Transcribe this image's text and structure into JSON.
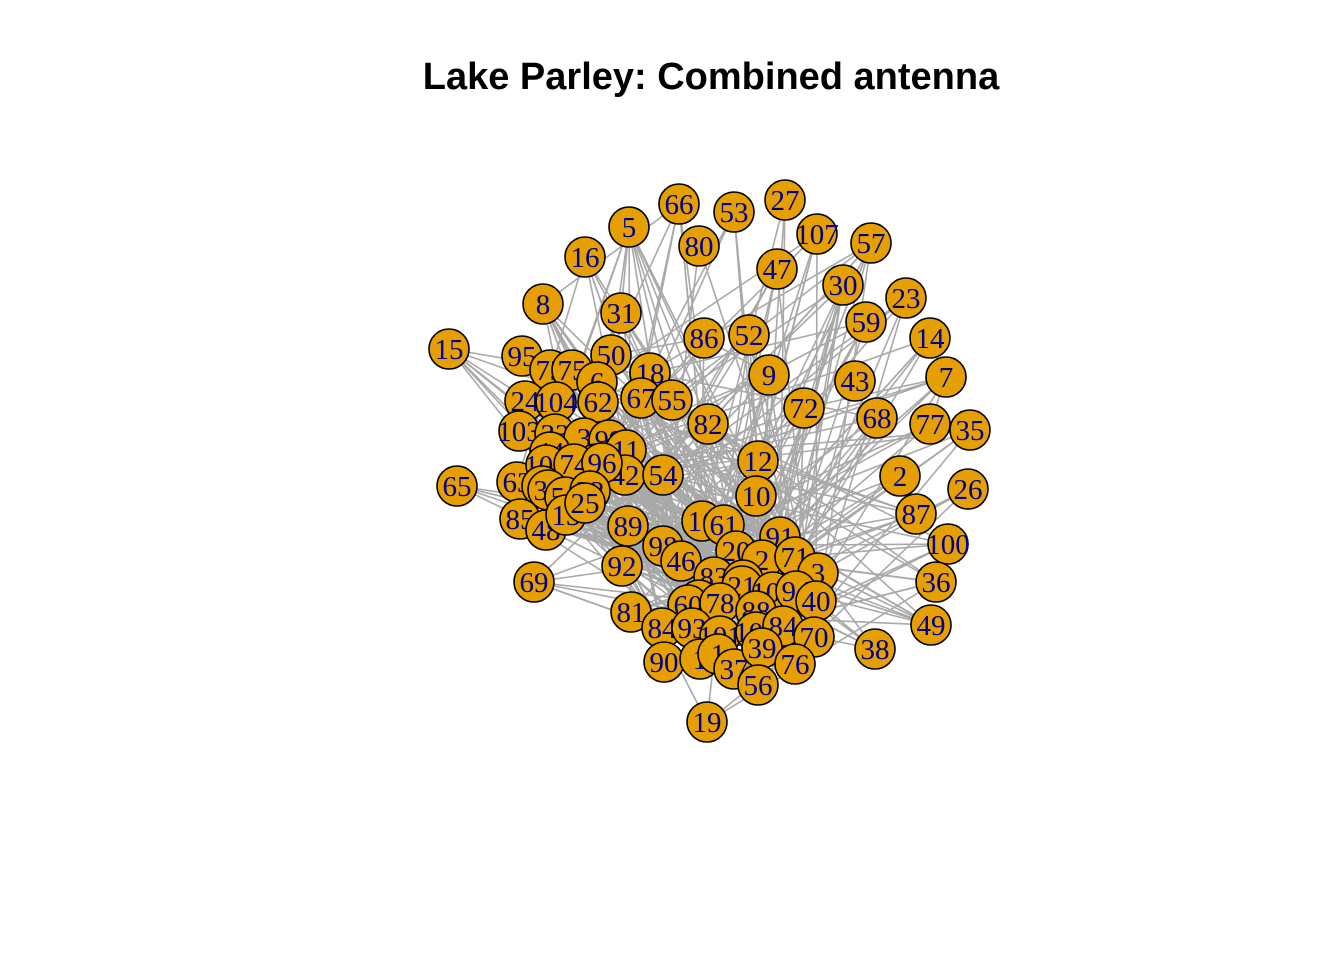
{
  "title": "Lake Parley: Combined antenna",
  "style": {
    "node_fill": "#E69F00",
    "node_stroke": "#000000",
    "label_color": "#00008B",
    "edge_color": "#A9A9A9"
  },
  "node_labels": [
    "15",
    "8",
    "16",
    "5",
    "66",
    "53",
    "27",
    "107",
    "57",
    "80",
    "47",
    "30",
    "23",
    "31",
    "95",
    "73",
    "75",
    "50",
    "18",
    "86",
    "52",
    "59",
    "14",
    "9",
    "43",
    "7",
    "24",
    "104",
    "6",
    "62",
    "67",
    "55",
    "72",
    "103",
    "33",
    "3",
    "99",
    "82",
    "68",
    "77",
    "35",
    "11",
    "44",
    "106",
    "42",
    "54",
    "12",
    "2",
    "65",
    "63",
    "107",
    "74",
    "96",
    "64",
    "34",
    "51",
    "22",
    "10",
    "26",
    "85",
    "48",
    "13",
    "25",
    "89",
    "16",
    "61",
    "87",
    "91",
    "100",
    "69",
    "98",
    "20",
    "2",
    "71",
    "3",
    "92",
    "46",
    "83",
    "4",
    "21",
    "106",
    "94",
    "40",
    "36",
    "97",
    "60",
    "81",
    "78",
    "88",
    "84",
    "49",
    "93",
    "101",
    "105",
    "84",
    "70",
    "38",
    "90",
    "1",
    "1",
    "37",
    "39",
    "76",
    "56",
    "19"
  ]
}
